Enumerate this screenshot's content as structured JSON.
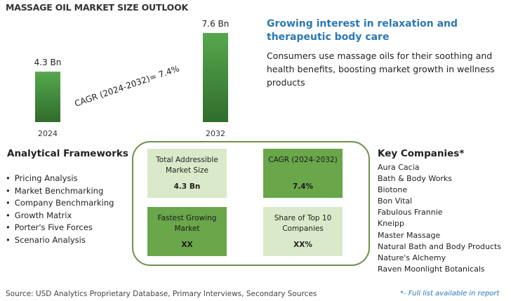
{
  "title": "MASSAGE OIL MARKET SIZE OUTLOOK",
  "chart_data": {
    "type": "bar",
    "categories": [
      "2024",
      "2032"
    ],
    "values": [
      4.3,
      7.6
    ],
    "value_labels": [
      "4.3 Bn",
      "7.6 Bn"
    ],
    "unit": "Bn",
    "annotation": "CAGR (2024-2032)=  7.4%",
    "colors": {
      "bar_bottom": "#2f6d2b",
      "bar_top": "#56a84e"
    }
  },
  "headline": {
    "title": "Growing interest in relaxation and therapeutic body care",
    "description": "Consumers use massage oils for their soothing and health benefits, boosting market growth in wellness products"
  },
  "analytical_frameworks": {
    "heading": "Analytical Frameworks",
    "items": [
      "Pricing Analysis",
      "Market Benchmarking",
      "Company Benchmarking",
      "Growth Matrix",
      "Porter's Five Forces",
      "Scenario Analysis"
    ]
  },
  "kpis": {
    "tam": {
      "label": "Total Addressible Market Size",
      "value": "4.3 Bn"
    },
    "cagr": {
      "label": "CAGR (2024-2032)",
      "value": "7.4%"
    },
    "fastest": {
      "label": "Fastest Growing Market",
      "value": "XX"
    },
    "share": {
      "label": "Share of Top 10 Companies",
      "value": "XX%"
    }
  },
  "key_companies": {
    "heading": "Key Companies*",
    "items": [
      "Aura Cacia",
      "Bath & Body Works",
      "Biotone",
      "Bon Vital",
      "Fabulous Frannie",
      "Kneipp",
      "Master Massage",
      "Natural Bath and Body Products",
      "Nature's Alchemy",
      "Raven Moonlight Botanicals"
    ]
  },
  "source": "Source: USD Analytics Proprietary Database, Primary Interviews, Secondary Sources",
  "footnote": "*- Full list available in report",
  "colors": {
    "accent_blue": "#2a78b5",
    "frame_green": "#6f8f4e",
    "kpi_light": "#d9e9c9",
    "kpi_dark": "#6aa64a"
  }
}
